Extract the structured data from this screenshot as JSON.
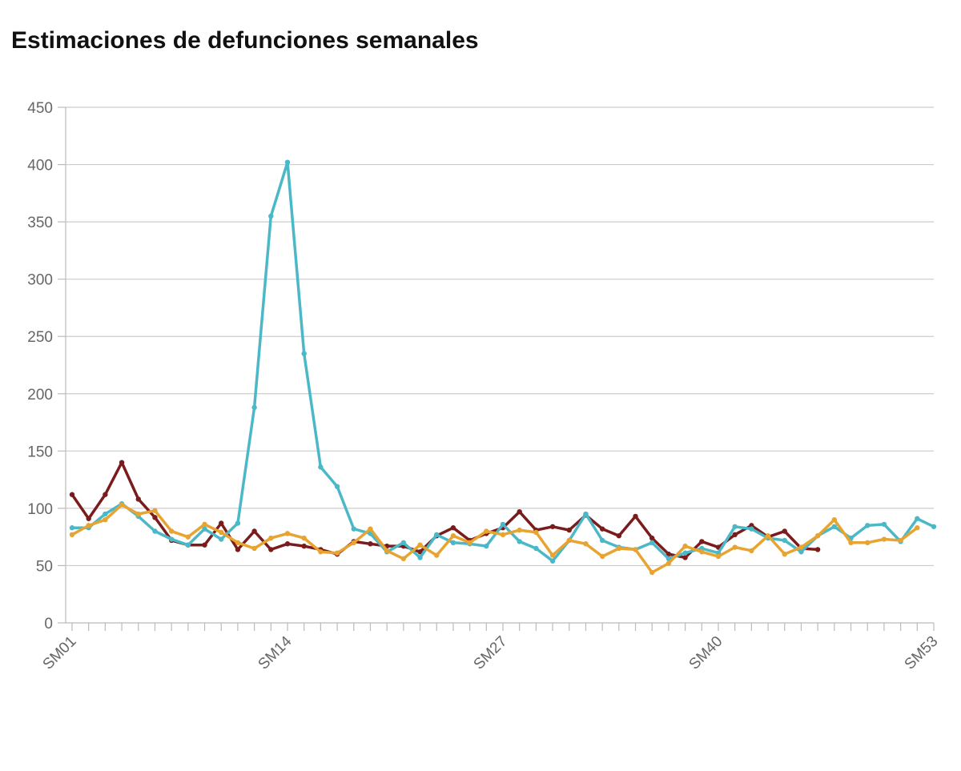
{
  "chart_data": {
    "type": "line",
    "title": "Estimaciones de defunciones semanales",
    "xlabel": "",
    "ylabel": "",
    "ylim": [
      0,
      450
    ],
    "yticks": [
      0,
      50,
      100,
      150,
      200,
      250,
      300,
      350,
      400,
      450
    ],
    "x_tick_labels": [
      "SM01",
      "SM14",
      "SM27",
      "SM40",
      "SM53"
    ],
    "week_count": 53,
    "grid": true,
    "legend": "none",
    "series": [
      {
        "color": "#7a1c1c",
        "values": [
          112,
          91,
          112,
          140,
          108,
          92,
          72,
          68,
          68,
          87,
          64,
          80,
          64,
          69,
          67,
          64,
          60,
          71,
          69,
          67,
          67,
          62,
          76,
          83,
          72,
          78,
          83,
          97,
          81,
          84,
          81,
          94,
          82,
          76,
          93,
          74,
          60,
          57,
          71,
          66,
          77,
          85,
          75,
          80,
          65,
          64
        ]
      },
      {
        "color": "#4bb8c8",
        "values": [
          83,
          83,
          95,
          104,
          93,
          80,
          73,
          68,
          82,
          73,
          87,
          188,
          355,
          402,
          235,
          136,
          119,
          82,
          78,
          62,
          70,
          57,
          77,
          70,
          69,
          67,
          86,
          71,
          65,
          54,
          72,
          95,
          72,
          66,
          64,
          70,
          56,
          61,
          65,
          61,
          84,
          82,
          74,
          72,
          62,
          76,
          84,
          74,
          85,
          86,
          71,
          91,
          84
        ]
      },
      {
        "color": "#e8a430",
        "values": [
          77,
          85,
          90,
          103,
          95,
          98,
          80,
          75,
          86,
          79,
          70,
          65,
          74,
          78,
          74,
          62,
          61,
          70,
          82,
          63,
          56,
          68,
          59,
          76,
          70,
          80,
          77,
          81,
          79,
          59,
          72,
          69,
          58,
          65,
          64,
          44,
          52,
          67,
          62,
          58,
          66,
          63,
          76,
          60,
          66,
          76,
          90,
          70,
          70,
          73,
          72,
          83
        ]
      }
    ]
  }
}
